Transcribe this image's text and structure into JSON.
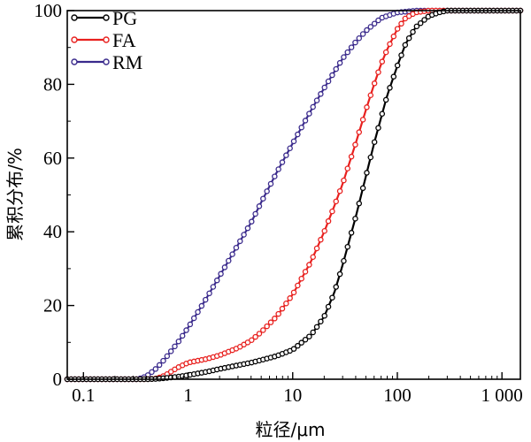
{
  "chart_data": {
    "type": "line",
    "xlabel": "粒径/μm",
    "ylabel": "累积分布/%",
    "x_scale": "log",
    "xlim": [
      0.07,
      1500
    ],
    "ylim": [
      0,
      100
    ],
    "x_ticks": [
      {
        "value": 0.1,
        "label": "0.1"
      },
      {
        "value": 1,
        "label": "1"
      },
      {
        "value": 10,
        "label": "10"
      },
      {
        "value": 100,
        "label": "100"
      },
      {
        "value": 1000,
        "label": "1 000"
      }
    ],
    "y_ticks": [
      {
        "value": 0,
        "label": "0"
      },
      {
        "value": 20,
        "label": "20"
      },
      {
        "value": 40,
        "label": "40"
      },
      {
        "value": 60,
        "label": "60"
      },
      {
        "value": 80,
        "label": "80"
      },
      {
        "value": 100,
        "label": "100"
      }
    ],
    "grid": false,
    "legend_position": "top-left",
    "series": [
      {
        "name": "PG",
        "color": "#000000",
        "x": [
          0.07,
          0.4,
          0.5,
          0.6,
          0.8,
          1,
          1.5,
          2,
          3,
          4,
          5,
          7,
          10,
          15,
          20,
          25,
          30,
          40,
          50,
          60,
          70,
          80,
          100,
          120,
          150,
          200,
          250,
          300,
          350,
          400,
          500,
          700,
          1000,
          1500
        ],
        "y": [
          0,
          0,
          0.1,
          0.3,
          0.7,
          1.1,
          2,
          2.8,
          3.8,
          4.5,
          5.2,
          6.3,
          8,
          12,
          17,
          23.5,
          31,
          44,
          55,
          64,
          71,
          77,
          85,
          91,
          95.5,
          98.5,
          99.5,
          100,
          100,
          100,
          100,
          100,
          100,
          100
        ]
      },
      {
        "name": "FA",
        "color": "#e8201e",
        "x": [
          0.07,
          0.4,
          0.5,
          0.6,
          0.7,
          0.8,
          1,
          1.5,
          2,
          3,
          4,
          5,
          7,
          10,
          15,
          20,
          25,
          30,
          40,
          50,
          60,
          70,
          80,
          100,
          120,
          150,
          200,
          300,
          500,
          1000,
          1500
        ],
        "y": [
          0,
          0,
          0.2,
          1,
          2.2,
          3.2,
          4.5,
          5.5,
          6.5,
          8.5,
          10.5,
          12.8,
          17,
          23,
          32,
          40,
          47,
          53,
          64,
          73,
          80,
          85.5,
          89.5,
          95,
          98,
          99.5,
          100,
          100,
          100,
          100,
          100
        ]
      },
      {
        "name": "RM",
        "color": "#3a2a8c",
        "x": [
          0.07,
          0.33,
          0.4,
          0.5,
          0.6,
          0.8,
          1,
          1.5,
          2,
          3,
          4,
          5,
          7,
          10,
          15,
          20,
          30,
          40,
          50,
          70,
          100,
          150,
          200,
          300,
          500,
          1000,
          1500
        ],
        "y": [
          0,
          0,
          0.8,
          3,
          5.5,
          10,
          14,
          22,
          28,
          36.5,
          42.5,
          48,
          56,
          64,
          73,
          79,
          87,
          91.5,
          94.5,
          98,
          99.5,
          100,
          100,
          100,
          100,
          100,
          100
        ]
      }
    ]
  }
}
